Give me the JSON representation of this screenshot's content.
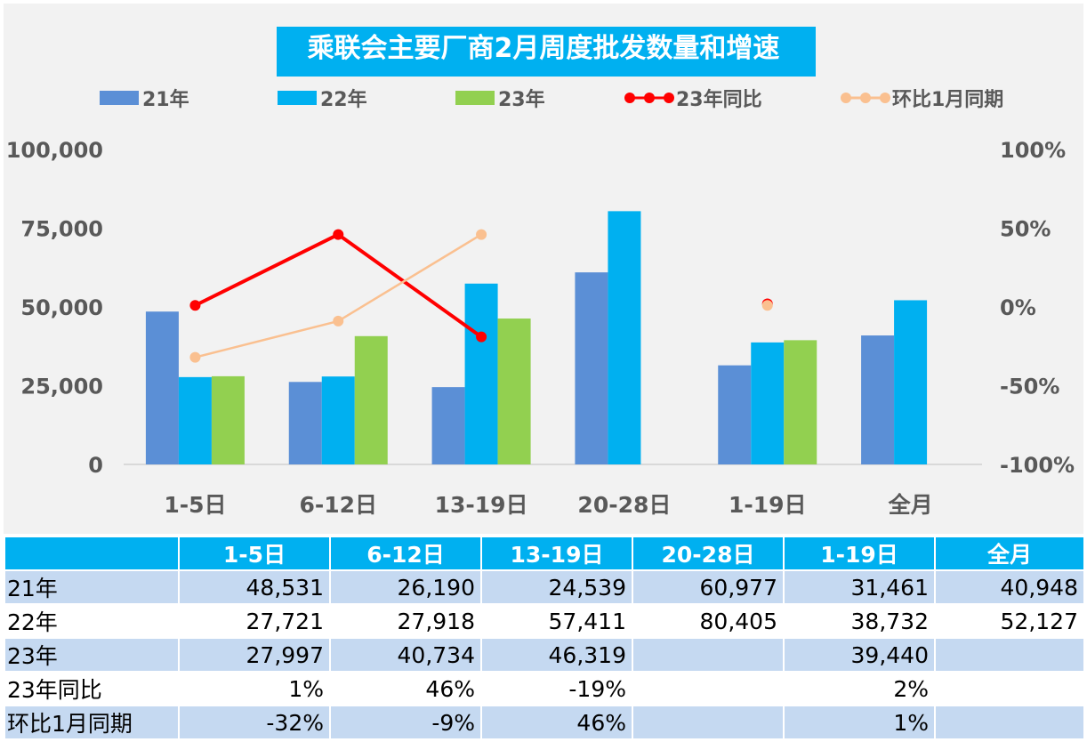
{
  "chart_data": {
    "type": "bar",
    "title": "乘联会主要厂商2月周度批发数量和增速",
    "categories": [
      "1-5日",
      "6-12日",
      "13-19日",
      "20-28日",
      "1-19日",
      "全月"
    ],
    "series": [
      {
        "name": "21年",
        "kind": "bar",
        "axis": "left",
        "color": "#5b8fd6",
        "values": [
          48531,
          26190,
          24539,
          60977,
          31461,
          40948
        ]
      },
      {
        "name": "22年",
        "kind": "bar",
        "axis": "left",
        "color": "#00b0f0",
        "values": [
          27721,
          27918,
          57411,
          80405,
          38732,
          52127
        ]
      },
      {
        "name": "23年",
        "kind": "bar",
        "axis": "left",
        "color": "#92d050",
        "values": [
          27997,
          40734,
          46319,
          null,
          39440,
          null
        ]
      },
      {
        "name": "23年同比",
        "kind": "line",
        "axis": "right",
        "color": "#ff0000",
        "values": [
          1,
          46,
          -19,
          null,
          2,
          null
        ]
      },
      {
        "name": "环比1月同期",
        "kind": "line",
        "axis": "right",
        "color": "#fac090",
        "values": [
          -32,
          -9,
          46,
          null,
          1,
          null
        ]
      }
    ],
    "y_left": {
      "min": 0,
      "max": 100000,
      "ticks": [
        "0",
        "25,000",
        "50,000",
        "75,000",
        "100,000"
      ]
    },
    "y_right": {
      "min": -100,
      "max": 100,
      "ticks": [
        "-100%",
        "-50%",
        "0%",
        "50%",
        "100%"
      ]
    },
    "legend_position": "top",
    "grid": false
  },
  "table": {
    "headers": [
      "1-5日",
      "6-12日",
      "13-19日",
      "20-28日",
      "1-19日",
      "全月"
    ],
    "rows": [
      {
        "label": "21年",
        "cells": [
          "48,531",
          "26,190",
          "24,539",
          "60,977",
          "31,461",
          "40,948"
        ]
      },
      {
        "label": "22年",
        "cells": [
          "27,721",
          "27,918",
          "57,411",
          "80,405",
          "38,732",
          "52,127"
        ]
      },
      {
        "label": "23年",
        "cells": [
          "27,997",
          "40,734",
          "46,319",
          "",
          "39,440",
          ""
        ]
      },
      {
        "label": "23年同比",
        "cells": [
          "1%",
          "46%",
          "-19%",
          "",
          "2%",
          ""
        ]
      },
      {
        "label": "环比1月同期",
        "cells": [
          "-32%",
          "-9%",
          "46%",
          "",
          "1%",
          ""
        ]
      }
    ]
  }
}
